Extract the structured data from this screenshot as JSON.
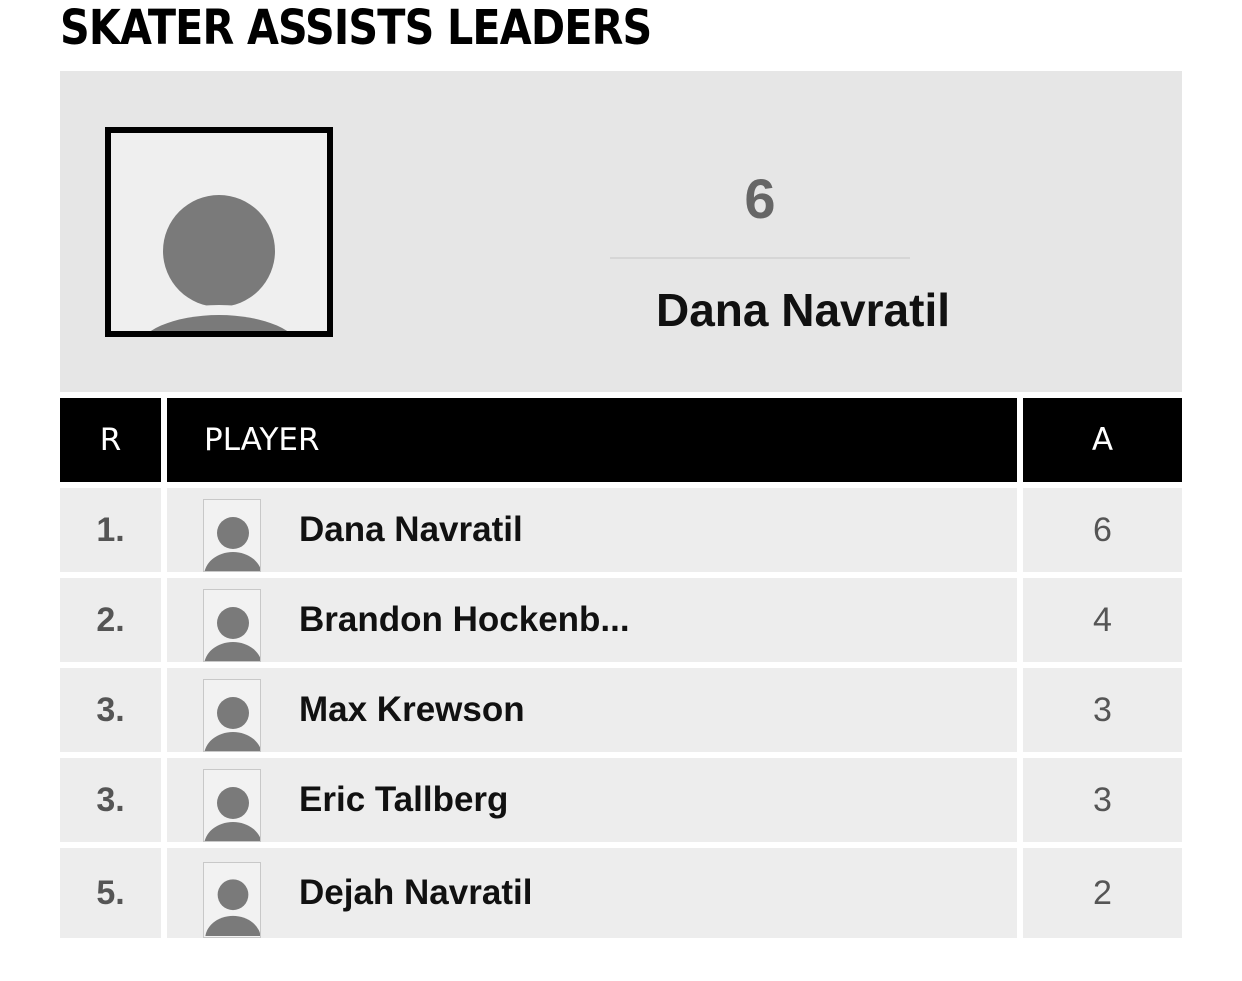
{
  "page": {
    "title": "SKATER ASSISTS LEADERS"
  },
  "leader": {
    "stat_value": "6",
    "name": "Dana Navratil",
    "photo_icon": "avatar-placeholder-icon"
  },
  "table": {
    "headers": {
      "rank": "R",
      "player": "PLAYER",
      "stat": "A"
    },
    "rows": [
      {
        "rank": "1.",
        "player": "Dana Navratil",
        "assists": "6"
      },
      {
        "rank": "2.",
        "player": "Brandon Hockenb...",
        "assists": "4"
      },
      {
        "rank": "3.",
        "player": "Max Krewson",
        "assists": "3"
      },
      {
        "rank": "3.",
        "player": "Eric Tallberg",
        "assists": "3"
      },
      {
        "rank": "5.",
        "player": "Dejah Navratil",
        "assists": "2"
      }
    ]
  },
  "colors": {
    "header_bg": "#000000",
    "row_bg": "#ededed",
    "card_bg": "#e6e6e6",
    "avatar_gray": "#7a7a7a"
  }
}
